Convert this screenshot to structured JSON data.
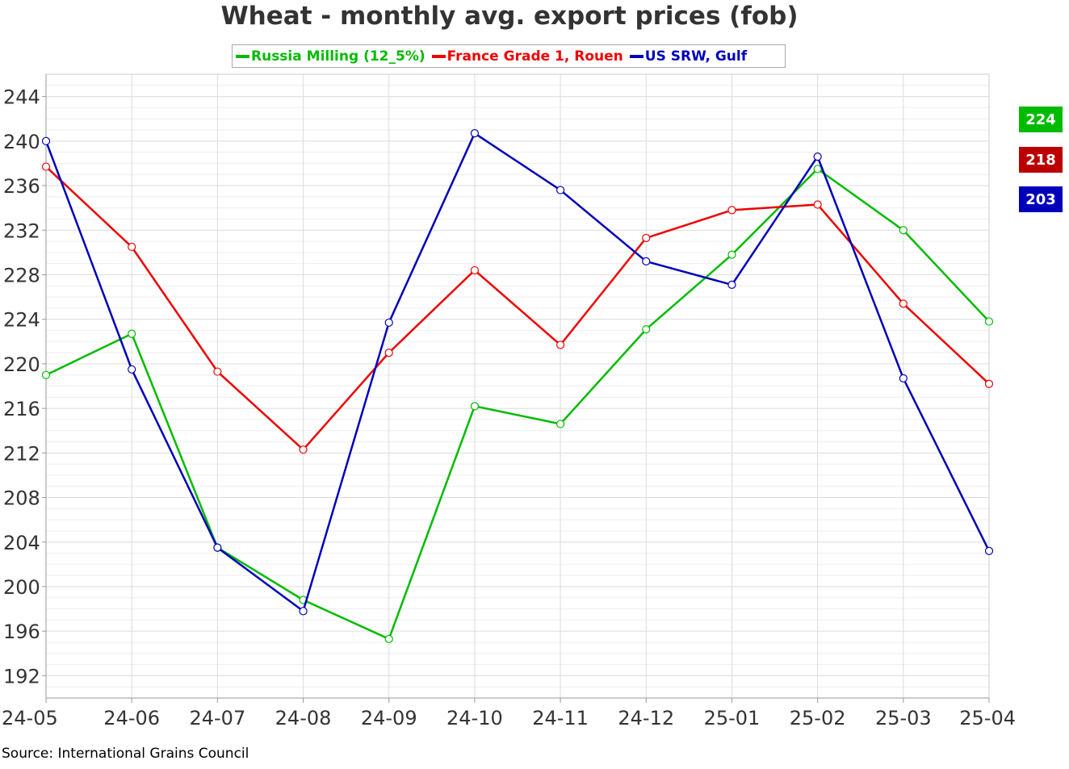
{
  "chart_data": {
    "type": "line",
    "title": "Wheat - monthly avg. export prices (fob)",
    "source": "Source: International Grains Council",
    "categories": [
      "24-05",
      "24-06",
      "24-07",
      "24-08",
      "24-09",
      "24-10",
      "24-11",
      "24-12",
      "25-01",
      "25-02",
      "25-03",
      "25-04"
    ],
    "ylim": [
      190,
      246
    ],
    "yticks": [
      192,
      196,
      200,
      204,
      208,
      212,
      216,
      220,
      224,
      228,
      232,
      236,
      240,
      244
    ],
    "grid": true,
    "legend_position": "top",
    "series": [
      {
        "name": "Russia Milling (12_5%)",
        "color": "#00bb00",
        "values": [
          219,
          222.7,
          203.5,
          198.8,
          195.3,
          216.2,
          214.6,
          223.1,
          229.8,
          237.5,
          232.0,
          223.8
        ],
        "end_label": "224"
      },
      {
        "name": "France Grade 1, Rouen",
        "color": "#ee0000",
        "values": [
          237.7,
          230.5,
          219.3,
          212.3,
          221.0,
          228.4,
          221.7,
          231.3,
          233.8,
          234.3,
          225.4,
          218.2
        ],
        "end_label": "218"
      },
      {
        "name": "US SRW, Gulf",
        "color": "#0000bb",
        "values": [
          240.0,
          219.5,
          203.5,
          197.8,
          223.7,
          240.7,
          235.6,
          229.2,
          227.1,
          238.6,
          218.7,
          203.2
        ],
        "end_label": "203"
      }
    ]
  },
  "badge_colors": [
    "#00bb00",
    "#bb0000",
    "#0000bb"
  ]
}
